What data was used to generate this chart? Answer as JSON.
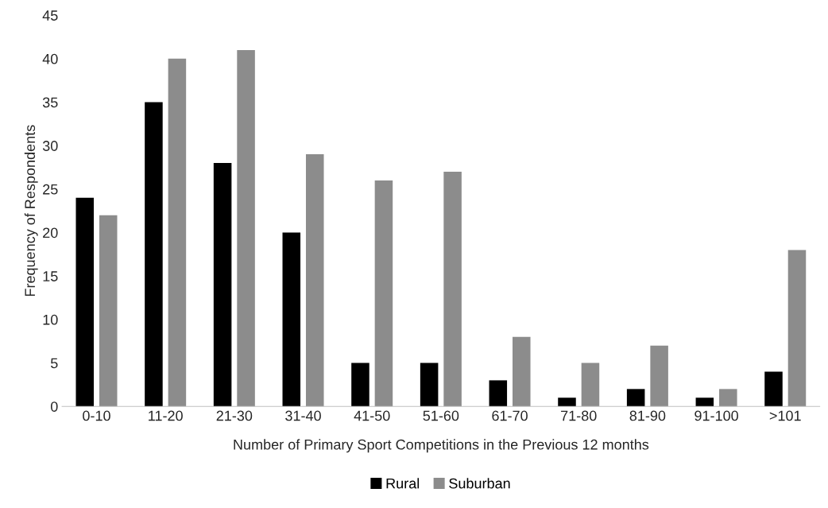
{
  "chart_data": {
    "type": "bar",
    "xlabel": "Number of Primary Sport Competitions in the Previous 12 months",
    "ylabel": "Frequency of Respondents",
    "categories": [
      "0-10",
      "11-20",
      "21-30",
      "31-40",
      "41-50",
      "51-60",
      "61-70",
      "71-80",
      "81-90",
      "91-100",
      ">101"
    ],
    "series": [
      {
        "name": "Rural",
        "color": "#000000",
        "values": [
          24,
          35,
          28,
          20,
          5,
          5,
          3,
          1,
          2,
          1,
          4
        ]
      },
      {
        "name": "Suburban",
        "color": "#8c8c8c",
        "values": [
          22,
          40,
          41,
          29,
          26,
          27,
          8,
          5,
          7,
          2,
          18
        ]
      }
    ],
    "ylim": [
      0,
      45
    ],
    "yticks": [
      0,
      5,
      10,
      15,
      20,
      25,
      30,
      35,
      40,
      45
    ],
    "grid": false,
    "legend": "bottom"
  }
}
